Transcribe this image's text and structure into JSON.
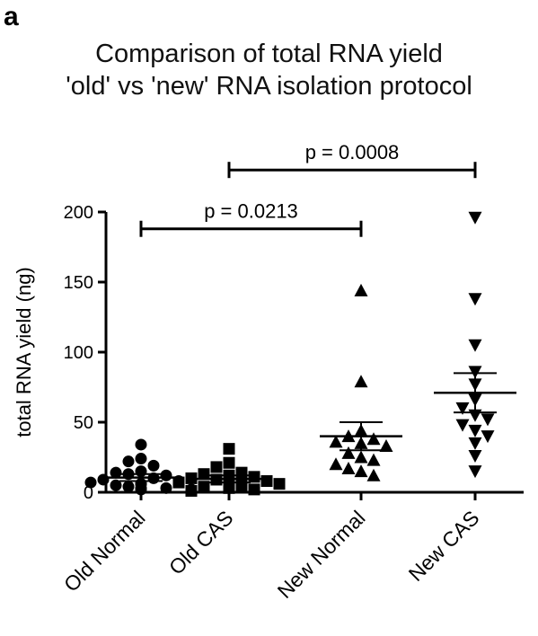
{
  "panel_label": "a",
  "chart_data": {
    "type": "scatter",
    "title": [
      "Comparison of total RNA yield",
      "'old' vs 'new' RNA isolation protocol"
    ],
    "ylabel": "total RNA yield (ng)",
    "xlabel": "",
    "ylim": [
      0,
      200
    ],
    "yticks": [
      0,
      50,
      100,
      150,
      200
    ],
    "grid": false,
    "categories": [
      "Old Normal",
      "Old CAS",
      "New Normal",
      "New CAS"
    ],
    "series": [
      {
        "marker": "circle",
        "values": [
          34,
          24,
          22,
          19,
          15,
          14,
          13,
          12,
          10,
          9,
          8,
          7,
          6,
          5,
          4,
          3,
          2,
          2,
          3,
          6
        ],
        "mean": 10.5,
        "sem_range": [
          8,
          13
        ]
      },
      {
        "marker": "square",
        "values": [
          31,
          21,
          18,
          14,
          13,
          12,
          11,
          10,
          9,
          8,
          7,
          6,
          5,
          4,
          3,
          2,
          1,
          4,
          6,
          9
        ],
        "mean": 9.5,
        "sem_range": [
          7,
          12
        ]
      },
      {
        "marker": "triangle-up",
        "values": [
          144,
          79,
          44,
          40,
          38,
          36,
          35,
          33,
          28,
          25,
          23,
          20,
          17,
          15,
          12
        ],
        "mean": 40,
        "sem_range": [
          30,
          50
        ]
      },
      {
        "marker": "triangle-down",
        "values": [
          196,
          138,
          105,
          86,
          77,
          66,
          60,
          55,
          52,
          48,
          44,
          40,
          35,
          26,
          15
        ],
        "mean": 71,
        "sem_range": [
          57,
          85
        ]
      }
    ],
    "annotations": [
      {
        "text": "p = 0.0213",
        "from": "Old Normal",
        "to": "New Normal",
        "y": 188
      },
      {
        "text": "p = 0.0008",
        "from": "Old CAS",
        "to": "New CAS",
        "y": 230
      }
    ],
    "colors": {
      "marker": "#000000",
      "axis": "#000000"
    }
  }
}
